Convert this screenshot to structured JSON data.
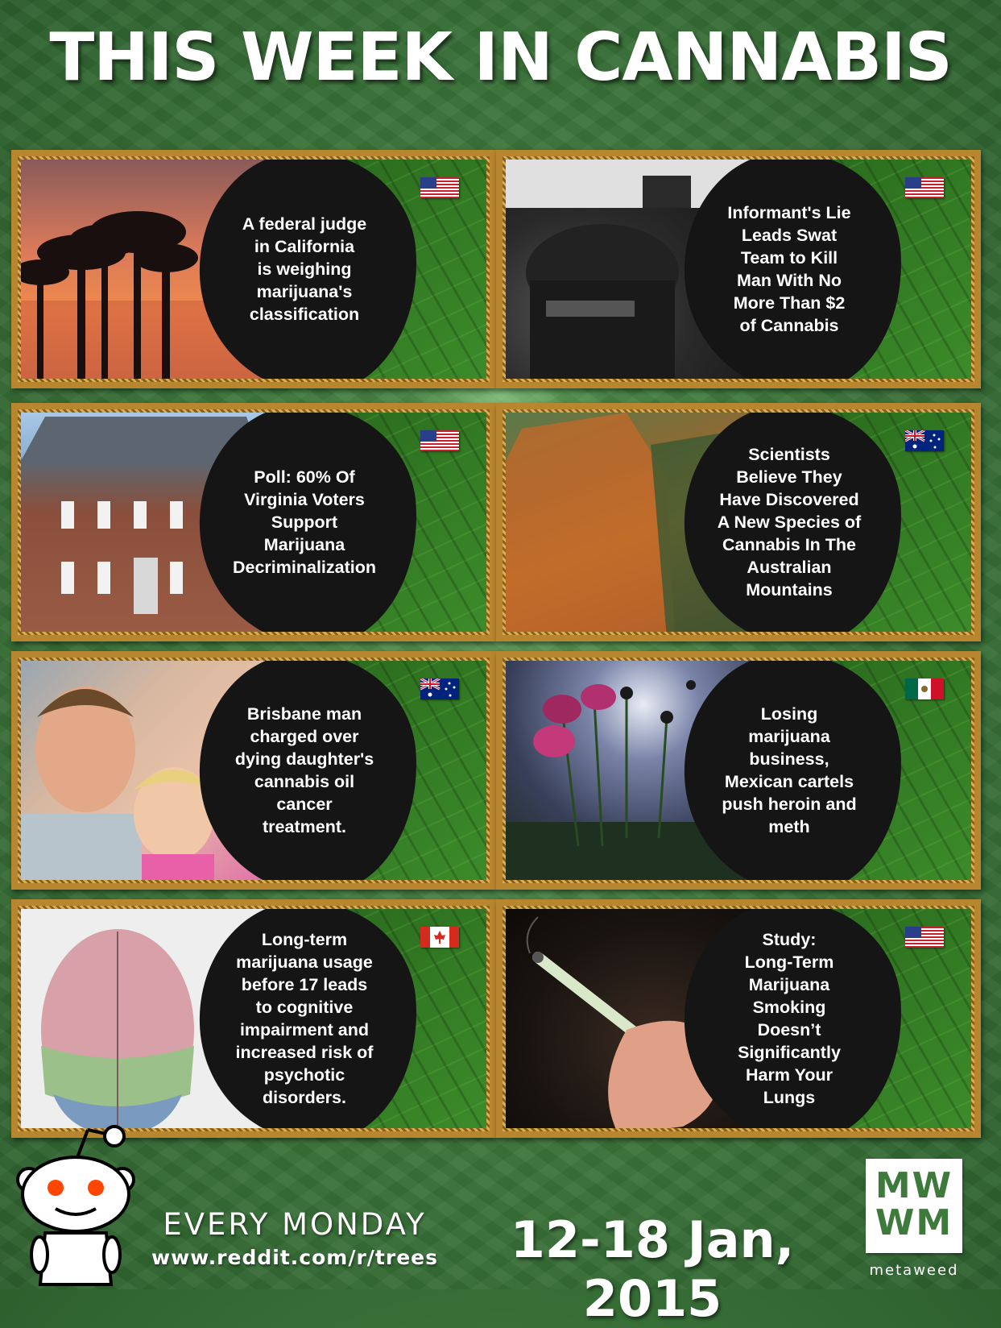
{
  "title": "THIS WEEK IN CANNABIS",
  "cards": [
    {
      "headline": [
        "A federal judge",
        "in California",
        "is weighing",
        "marijuana's",
        "classification"
      ],
      "flag": "usa-flag-icon",
      "photo": "palm-sunset-photo"
    },
    {
      "headline": [
        "Informant's Lie",
        "Leads Swat",
        "Team to Kill",
        "Man With No",
        "More Than $2",
        "of Cannabis"
      ],
      "flag": "usa-flag-icon",
      "photo": "swat-officer-photo"
    },
    {
      "headline": [
        "Poll: 60% Of",
        "Virginia Voters",
        "Support",
        "Marijuana",
        "Decriminalization"
      ],
      "flag": "usa-flag-icon",
      "photo": "brick-building-photo"
    },
    {
      "headline": [
        "Scientists",
        "Believe They",
        "Have Discovered",
        "A New Species of",
        "Cannabis In The",
        "Australian",
        "Mountains"
      ],
      "flag": "australia-flag-icon",
      "photo": "mountain-cliffs-photo"
    },
    {
      "headline": [
        "Brisbane man",
        "charged over",
        "dying daughter's",
        "cannabis oil",
        "cancer",
        "treatment."
      ],
      "flag": "australia-flag-icon",
      "photo": "father-daughter-photo"
    },
    {
      "headline": [
        "Losing",
        "marijuana",
        "business,",
        "Mexican cartels",
        "push heroin and",
        "meth"
      ],
      "flag": "mexico-flag-icon",
      "photo": "poppy-field-photo"
    },
    {
      "headline": [
        "Long-term",
        "marijuana usage",
        "before 17 leads",
        "to cognitive",
        "impairment and",
        "increased risk of",
        "psychotic",
        "disorders."
      ],
      "flag": "canada-flag-icon",
      "photo": "brain-illustration"
    },
    {
      "headline": [
        "Study:",
        "Long-Term",
        "Marijuana",
        "Smoking",
        "Doesn’t",
        "Significantly",
        "Harm Your",
        "Lungs"
      ],
      "flag": "usa-flag-icon",
      "photo": "joint-in-hand-photo"
    }
  ],
  "footer": {
    "every": "EVERY MONDAY",
    "url": "www.reddit.com/r/trees",
    "date": "12-18 Jan, 2015",
    "logo_top": "MW",
    "logo_bottom": "WM",
    "logo_name": "metaweed"
  },
  "colors": {
    "background": "#3f7a3d",
    "frame": "#b7862f",
    "blob": "#151515",
    "text": "#ffffff"
  }
}
